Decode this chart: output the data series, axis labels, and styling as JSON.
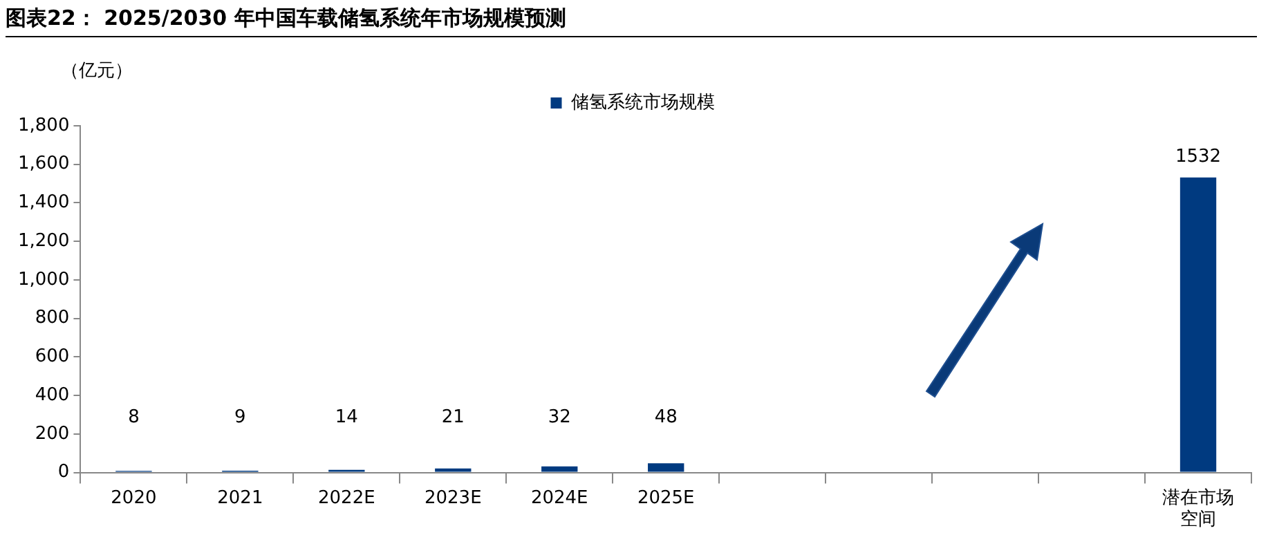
{
  "chart_data": {
    "type": "bar",
    "title": "图表22：  2025/2030 年中国车载储氢系统年市场规模预测",
    "ylabel": "（亿元）",
    "categories": [
      "2020",
      "2021",
      "2022E",
      "2023E",
      "2024E",
      "2025E",
      null,
      null,
      null,
      null,
      "潜在市场空间"
    ],
    "series": [
      {
        "name": "储氢系统市场规模",
        "color": "#003a80",
        "values": [
          8,
          9,
          14,
          21,
          32,
          48,
          null,
          null,
          null,
          null,
          1532
        ]
      }
    ],
    "ylim": [
      0,
      1800
    ],
    "yticks": [
      0,
      200,
      400,
      600,
      800,
      {
        "value": 1000,
        "label": "1,000"
      },
      {
        "value": 1200,
        "label": "1,200"
      },
      {
        "value": 1400,
        "label": "1,400"
      },
      {
        "value": 1600,
        "label": "1,600"
      },
      {
        "value": 1800,
        "label": "1,800"
      }
    ],
    "grid": false,
    "legend": "top",
    "data_labels": true
  }
}
